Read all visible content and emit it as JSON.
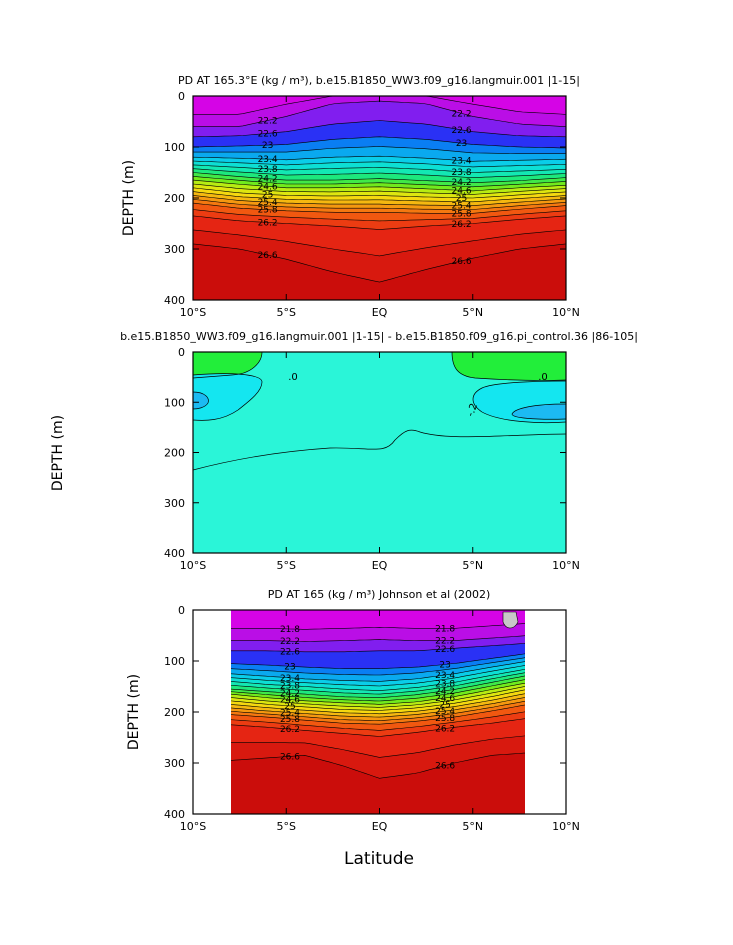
{
  "figure": {
    "xlabel_shared": "Latitude"
  },
  "chart_data": [
    {
      "type": "contour",
      "title": "PD AT 165.3°E (kg / m³), b.e15.B1850_WW3.f09_g16.langmuir.001 |1-15|",
      "ylabel": "DEPTH (m)",
      "xlabel": "",
      "xlim": [
        -10,
        10
      ],
      "ylim": [
        400,
        0
      ],
      "xticks": [
        "10°S",
        "5°S",
        "EQ",
        "5°N",
        "10°N"
      ],
      "yticks": [
        "0",
        "100",
        "200",
        "300",
        "400"
      ],
      "levels": [
        21.8,
        22.2,
        22.6,
        23,
        23.2,
        23.4,
        23.6,
        23.8,
        24,
        24.2,
        24.4,
        24.6,
        24.8,
        25,
        25.2,
        25.4,
        25.6,
        25.8,
        26,
        26.2,
        26.4,
        26.6
      ],
      "contour_labels": [
        "22.2",
        "22.6",
        "23",
        "23.4",
        "23.8",
        "24.2",
        "24.6",
        "25",
        "25.4",
        "25.8",
        "26.2",
        "26.6"
      ],
      "isopycnal_depths": {
        "x": [
          -10,
          -7.5,
          -5,
          -2.5,
          0,
          2.5,
          5,
          7.5,
          10
        ],
        "series": [
          {
            "level": 22.2,
            "depth": [
              60,
              60,
              40,
              15,
              10,
              15,
              40,
              55,
              60
            ]
          },
          {
            "level": 22.6,
            "depth": [
              80,
              78,
              70,
              55,
              48,
              55,
              70,
              78,
              80
            ]
          },
          {
            "level": 23,
            "depth": [
              100,
              98,
              95,
              85,
              80,
              85,
              95,
              100,
              102
            ]
          },
          {
            "level": 23.4,
            "depth": [
              120,
              122,
              125,
              120,
              118,
              122,
              128,
              126,
              124
            ]
          },
          {
            "level": 23.8,
            "depth": [
              135,
              140,
              145,
              142,
              140,
              144,
              150,
              147,
              144
            ]
          },
          {
            "level": 24.2,
            "depth": [
              150,
              158,
              165,
              165,
              162,
              166,
              170,
              166,
              160
            ]
          },
          {
            "level": 24.6,
            "depth": [
              165,
              173,
              180,
              180,
              178,
              182,
              186,
              180,
              175
            ]
          },
          {
            "level": 25,
            "depth": [
              180,
              190,
              195,
              196,
              195,
              198,
              200,
              194,
              188
            ]
          },
          {
            "level": 25.4,
            "depth": [
              195,
              205,
              210,
              212,
              212,
              214,
              215,
              208,
              202
            ]
          },
          {
            "level": 25.8,
            "depth": [
              210,
              220,
              225,
              228,
              228,
              230,
              230,
              222,
              215
            ]
          },
          {
            "level": 26.2,
            "depth": [
              235,
              245,
              250,
              255,
              262,
              255,
              250,
              242,
              235
            ]
          },
          {
            "level": 26.6,
            "depth": [
              290,
              300,
              320,
              345,
              365,
              340,
              318,
              300,
              290
            ]
          }
        ]
      }
    },
    {
      "type": "contour",
      "title": "b.e15.B1850_WW3.f09_g16.langmuir.001 |1-15| - b.e15.B1850.f09_g16.pi_control.36 |86-105|",
      "ylabel": "DEPTH (m)",
      "xlabel": "",
      "xlim": [
        -10,
        10
      ],
      "ylim": [
        400,
        0
      ],
      "xticks": [
        "10°S",
        "5°S",
        "EQ",
        "5°N",
        "10°N"
      ],
      "yticks": [
        "0",
        "100",
        "200",
        "300",
        "400"
      ],
      "levels": [
        -0.4,
        -0.2,
        0.0,
        0.2
      ],
      "contour_labels": [
        ".0",
        ".0",
        "-.2"
      ],
      "note": "Difference field: near zero almost everywhere; small positive patches near surface at 10°S and 5–10°N, small negative patches near 100 m at 10°S and 8–10°N."
    },
    {
      "type": "contour",
      "title": "PD AT 165 (kg / m³) Johnson et al (2002)",
      "ylabel": "DEPTH (m)",
      "xlabel": "Latitude",
      "xlim": [
        -10,
        10
      ],
      "ylim": [
        400,
        0
      ],
      "data_xrange": [
        -8,
        8
      ],
      "xticks": [
        "10°S",
        "5°S",
        "EQ",
        "5°N",
        "10°N"
      ],
      "yticks": [
        "0",
        "100",
        "200",
        "300",
        "400"
      ],
      "levels": [
        21.8,
        22.2,
        22.6,
        23,
        23.2,
        23.4,
        23.6,
        23.8,
        24,
        24.2,
        24.4,
        24.6,
        24.8,
        25,
        25.2,
        25.4,
        25.6,
        25.8,
        26,
        26.2,
        26.4,
        26.6
      ],
      "contour_labels": [
        "21.8",
        "22.2",
        "22.6",
        "23",
        "23.4",
        "23.8",
        "24.2",
        "24.6",
        "25",
        "25.4",
        "25.8",
        "26.2",
        "26.6"
      ],
      "isopycnal_depths": {
        "x": [
          -8,
          -6,
          -4,
          -2,
          0,
          2,
          4,
          6,
          8
        ],
        "series": [
          {
            "level": 22.2,
            "depth": [
              60,
              60,
              62,
              60,
              58,
              60,
              60,
              55,
              50
            ]
          },
          {
            "level": 22.6,
            "depth": [
              80,
              80,
              82,
              82,
              80,
              80,
              75,
              70,
              65
            ]
          },
          {
            "level": 23,
            "depth": [
              105,
              108,
              112,
              115,
              115,
              112,
              105,
              95,
              85
            ]
          },
          {
            "level": 23.4,
            "depth": [
              125,
              130,
              135,
              138,
              140,
              135,
              125,
              112,
              100
            ]
          },
          {
            "level": 23.8,
            "depth": [
              140,
              146,
              150,
              155,
              158,
              152,
              142,
              128,
              115
            ]
          },
          {
            "level": 24.2,
            "depth": [
              155,
              160,
              165,
              170,
              172,
              166,
              156,
              142,
              128
            ]
          },
          {
            "level": 24.6,
            "depth": [
              165,
              172,
              178,
              182,
              185,
              180,
              170,
              156,
              142
            ]
          },
          {
            "level": 25,
            "depth": [
              178,
              185,
              190,
              195,
              197,
              192,
              183,
              170,
              155
            ]
          },
          {
            "level": 25.4,
            "depth": [
              192,
              198,
              203,
              208,
              210,
              205,
              196,
              184,
              170
            ]
          },
          {
            "level": 25.8,
            "depth": [
              205,
              210,
              216,
              222,
              224,
              218,
              210,
              198,
              185
            ]
          },
          {
            "level": 26.2,
            "depth": [
              225,
              230,
              236,
              242,
              248,
              240,
              230,
              222,
              212
            ]
          },
          {
            "level": 26.6,
            "depth": [
              295,
              290,
              285,
              305,
              330,
              320,
              300,
              285,
              280
            ]
          }
        ]
      }
    }
  ]
}
